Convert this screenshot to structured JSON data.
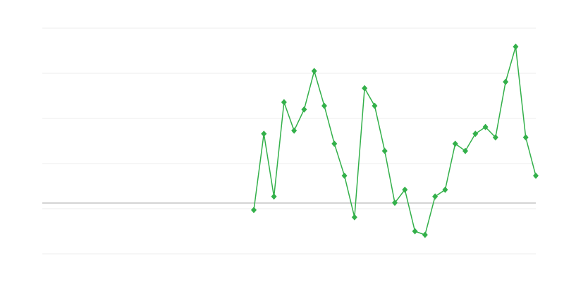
{
  "chart_data": {
    "type": "line",
    "title": "",
    "xlabel": "",
    "ylabel": "",
    "x": [
      21,
      22,
      23,
      24,
      25,
      26,
      27,
      28,
      29,
      30,
      31,
      32,
      33,
      34,
      35,
      36,
      37,
      38,
      39,
      40,
      41,
      42,
      43,
      44,
      45,
      46,
      47,
      48,
      49
    ],
    "xlim": [
      0,
      49
    ],
    "ylim": [
      0,
      5
    ],
    "gridlines_y": [
      0,
      1,
      2,
      3,
      4,
      5
    ],
    "reference_line_y": 1.125,
    "grid": true,
    "legend": "none",
    "marker": "diamond",
    "series": [
      {
        "values": [
          0.97,
          2.66,
          1.27,
          3.36,
          2.73,
          3.2,
          4.05,
          3.28,
          2.44,
          1.73,
          0.81,
          3.67,
          3.28,
          2.28,
          1.13,
          1.42,
          0.5,
          0.42,
          1.27,
          1.42,
          2.44,
          2.28,
          2.66,
          2.81,
          2.58,
          3.81,
          4.59,
          2.58,
          1.73
        ],
        "color": "#33b04a"
      }
    ],
    "colors": {
      "grid": "#ececec",
      "reference_line": "#aaaaaa"
    }
  }
}
